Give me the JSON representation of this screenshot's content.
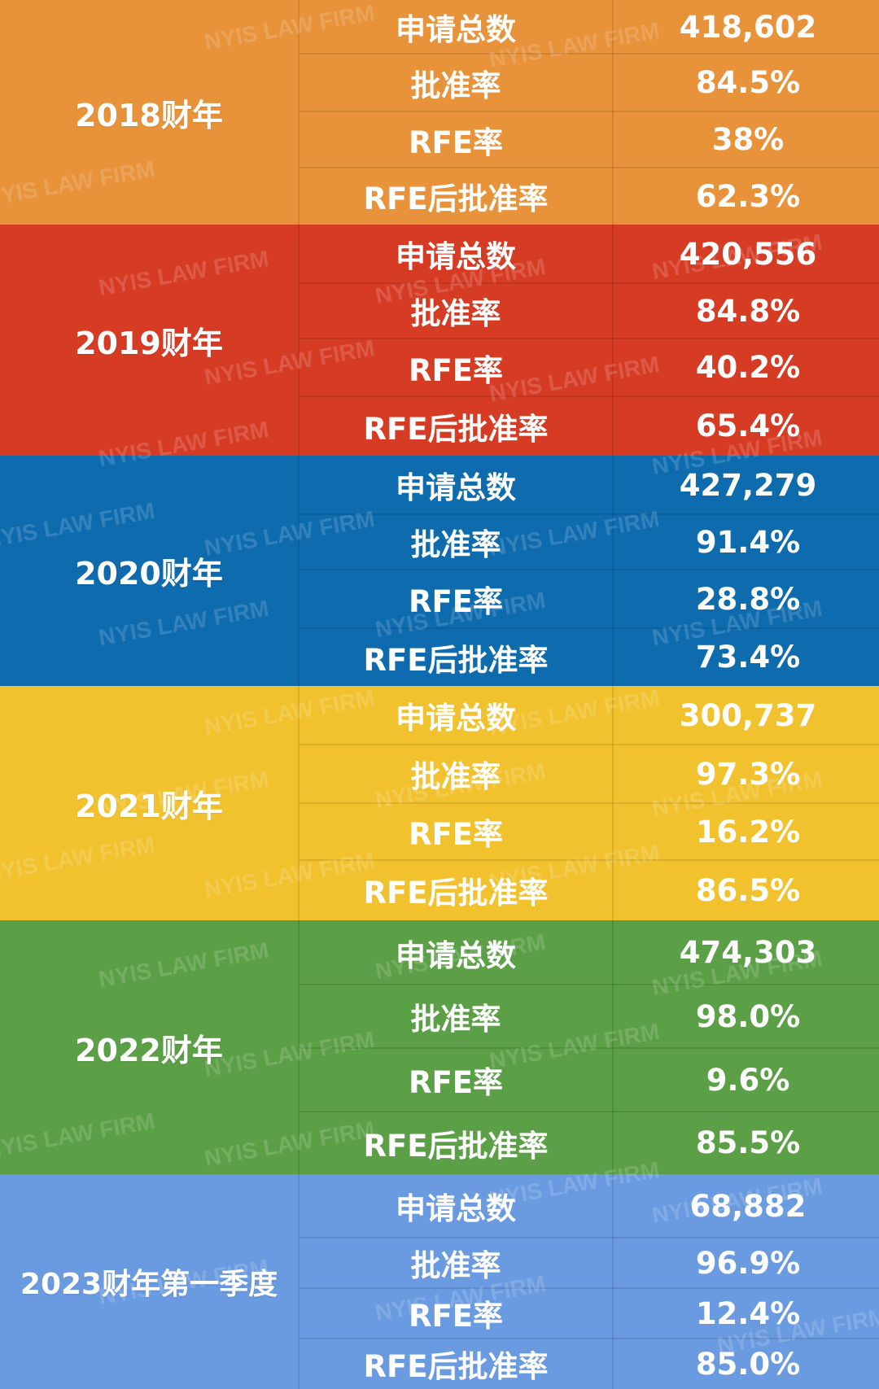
{
  "colors": {
    "fy2018": "#E8923A",
    "fy2019": "#D63B24",
    "fy2020": "#0E6BAE",
    "fy2021": "#F1C22E",
    "fy2022": "#5B9F46",
    "fy2023q1": "#6A9AE0"
  },
  "watermark_text": "NYIS LAW FIRM",
  "years": [
    {
      "label": "2018财年",
      "color_key": "fy2018",
      "rows": [
        {
          "metric": "申请总数",
          "value": "418,602"
        },
        {
          "metric": "批准率",
          "value": "84.5%"
        },
        {
          "metric": "RFE率",
          "value": "38%"
        },
        {
          "metric": "RFE后批准率",
          "value": "62.3%"
        }
      ]
    },
    {
      "label": "2019财年",
      "color_key": "fy2019",
      "rows": [
        {
          "metric": "申请总数",
          "value": "420,556"
        },
        {
          "metric": "批准率",
          "value": "84.8%"
        },
        {
          "metric": "RFE率",
          "value": "40.2%"
        },
        {
          "metric": "RFE后批准率",
          "value": "65.4%"
        }
      ]
    },
    {
      "label": "2020财年",
      "color_key": "fy2020",
      "rows": [
        {
          "metric": "申请总数",
          "value": "427,279"
        },
        {
          "metric": "批准率",
          "value": "91.4%"
        },
        {
          "metric": "RFE率",
          "value": "28.8%"
        },
        {
          "metric": "RFE后批准率",
          "value": "73.4%"
        }
      ]
    },
    {
      "label": "2021财年",
      "color_key": "fy2021",
      "rows": [
        {
          "metric": "申请总数",
          "value": "300,737"
        },
        {
          "metric": "批准率",
          "value": "97.3%"
        },
        {
          "metric": "RFE率",
          "value": "16.2%"
        },
        {
          "metric": "RFE后批准率",
          "value": "86.5%"
        }
      ]
    },
    {
      "label": "2022财年",
      "color_key": "fy2022",
      "rows": [
        {
          "metric": "申请总数",
          "value": "474,303"
        },
        {
          "metric": "批准率",
          "value": "98.0%"
        },
        {
          "metric": "RFE率",
          "value": "9.6%"
        },
        {
          "metric": "RFE后批准率",
          "value": "85.5%"
        }
      ]
    },
    {
      "label": "2023财年第一季度",
      "color_key": "fy2023q1",
      "rows": [
        {
          "metric": "申请总数",
          "value": "68,882"
        },
        {
          "metric": "批准率",
          "value": "96.9%"
        },
        {
          "metric": "RFE率",
          "value": "12.4%"
        },
        {
          "metric": "RFE后批准率",
          "value": "85.0%"
        }
      ]
    }
  ]
}
